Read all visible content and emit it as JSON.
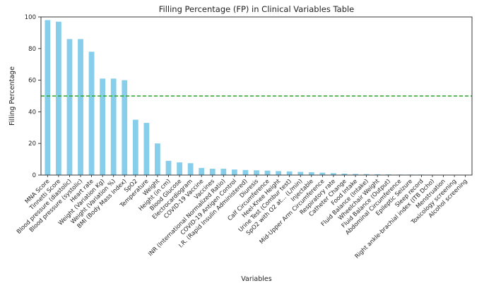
{
  "chart_data": {
    "type": "bar",
    "title": "Filling Percentage (FP) in Clinical Variables Table",
    "xlabel": "Variables",
    "ylabel": "Filling Percentage",
    "ylim": [
      0,
      100
    ],
    "yticks": [
      0,
      20,
      40,
      60,
      80,
      100
    ],
    "grid": false,
    "reference_line": {
      "y": 50,
      "color": "#2ca02c",
      "style": "dashed"
    },
    "bar_color": "#87ceeb",
    "categories": [
      "MNA Score",
      "Tinnetti Score",
      "Blood pressure (diastolic)",
      "Blood pressure (systolic)",
      "Heart rate",
      "Weight (Variation Kg)",
      "Weight (Variation %)",
      "BMI (Body Mass Index)",
      "SpO2",
      "Temperature",
      "Weight",
      "Height (in cm)",
      "Blood Glucose",
      "Electrocardiogram",
      "COVID-19 Vaccine",
      "Vaccines",
      "INR (International Normalized Ratio)",
      "COVID-19 Antigen Control",
      "I.R. (Rapid Insulin Administered)",
      "Diuresis",
      "Calf Circumference",
      "Heel-Knee Height",
      "Urine Test (Combur test)",
      "SpO2 with O2 at... (L/min)",
      "Injectable",
      "Mid-Upper Arm Circumference",
      "Respiratory rate",
      "Catheter Change",
      "Food Intake",
      "Fluid Balance (Intake)",
      "Wheelchair Weight",
      "Fluid Balance (Output)",
      "Abdominal Circumference",
      "Epileptic Seizure",
      "Sleep record",
      "Right ankle-brachial index (ITB Dcho)",
      "Menstruation",
      "Toxicology screening",
      "Alcohol screening"
    ],
    "values": [
      98,
      97,
      86,
      86,
      78,
      61,
      61,
      60,
      35,
      33,
      20,
      9,
      8,
      7.5,
      4.5,
      4,
      4,
      3.5,
      3.2,
      3,
      2.8,
      2.5,
      2.3,
      2,
      1.8,
      1.5,
      1.2,
      0.9,
      0.7,
      0.6,
      0.5,
      0.4,
      0.3,
      0.3,
      0.3,
      0.2,
      0.2,
      0.2,
      0.2
    ]
  }
}
